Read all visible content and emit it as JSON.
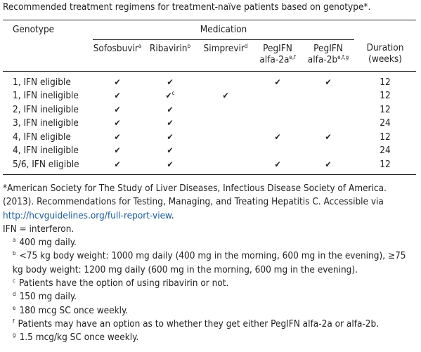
{
  "title": "Recommended treatment regimens for treatment-naïve patients based on genotype*.",
  "table": {
    "genotype_header": "Genotype",
    "group_header": "Medication",
    "columns": [
      {
        "lines": [
          "Sofosbuvir"
        ],
        "sup": "a"
      },
      {
        "lines": [
          "Ribavirin"
        ],
        "sup": "b"
      },
      {
        "lines": [
          "Simprevir"
        ],
        "sup": "d"
      },
      {
        "lines": [
          "PegIFN",
          "alfa-2a"
        ],
        "sup": "e,f"
      },
      {
        "lines": [
          "PegIFN",
          "alfa-2b"
        ],
        "sup": "e,f,g"
      }
    ],
    "duration_header": [
      "Duration",
      "(weeks)"
    ],
    "rows": [
      {
        "genotype": "1, IFN eligible",
        "cells": [
          "✔",
          "✔",
          null,
          "✔",
          "✔"
        ],
        "duration": 12
      },
      {
        "genotype": "1, IFN ineligible",
        "cells": [
          "✔",
          {
            "text": "✔",
            "sup": "c"
          },
          "✔",
          null,
          null
        ],
        "duration": 12
      },
      {
        "genotype": "2, IFN ineligible",
        "cells": [
          "✔",
          "✔",
          null,
          null,
          null
        ],
        "duration": 12
      },
      {
        "genotype": "3, IFN ineligible",
        "cells": [
          "✔",
          "✔",
          null,
          null,
          null
        ],
        "duration": 24
      },
      {
        "genotype": "4, IFN eligible",
        "cells": [
          "✔",
          "✔",
          null,
          "✔",
          "✔"
        ],
        "duration": 12
      },
      {
        "genotype": "4, IFN ineligible",
        "cells": [
          "✔",
          "✔",
          null,
          null,
          null
        ],
        "duration": 24
      },
      {
        "genotype": "5/6, IFN eligible",
        "cells": [
          "✔",
          "✔",
          null,
          "✔",
          "✔"
        ],
        "duration": 12
      }
    ]
  },
  "source": {
    "text": "*American Society for The Study of Liver Diseases, Infectious Disease Society of America. (2013). Recommendations for Testing, Managing, and Treating Hepatitis C. Accessible via ",
    "link": "http://hcvguidelines.org/full-report-view",
    "end": "."
  },
  "abbreviation": "IFN = interferon.",
  "footnotes": [
    {
      "mark": "a",
      "text": "400 mg daily."
    },
    {
      "mark": "b",
      "text": "<75 kg body weight: 1000 mg daily (400 mg in the morning, 600 mg in the evening), ≥75 kg body weight: 1200 mg daily (600 mg in the morning, 600 mg in the evening)."
    },
    {
      "mark": "c",
      "text": "Patients have the option of using ribavirin or not."
    },
    {
      "mark": "d",
      "text": "150 mg daily."
    },
    {
      "mark": "e",
      "text": "180 mcg SC once weekly."
    },
    {
      "mark": "f",
      "text": "Patients may have an option as to whether they get either PegIFN alfa-2a or alfa-2b."
    },
    {
      "mark": "g",
      "text": "1.5 mcg/kg SC once weekly."
    }
  ]
}
